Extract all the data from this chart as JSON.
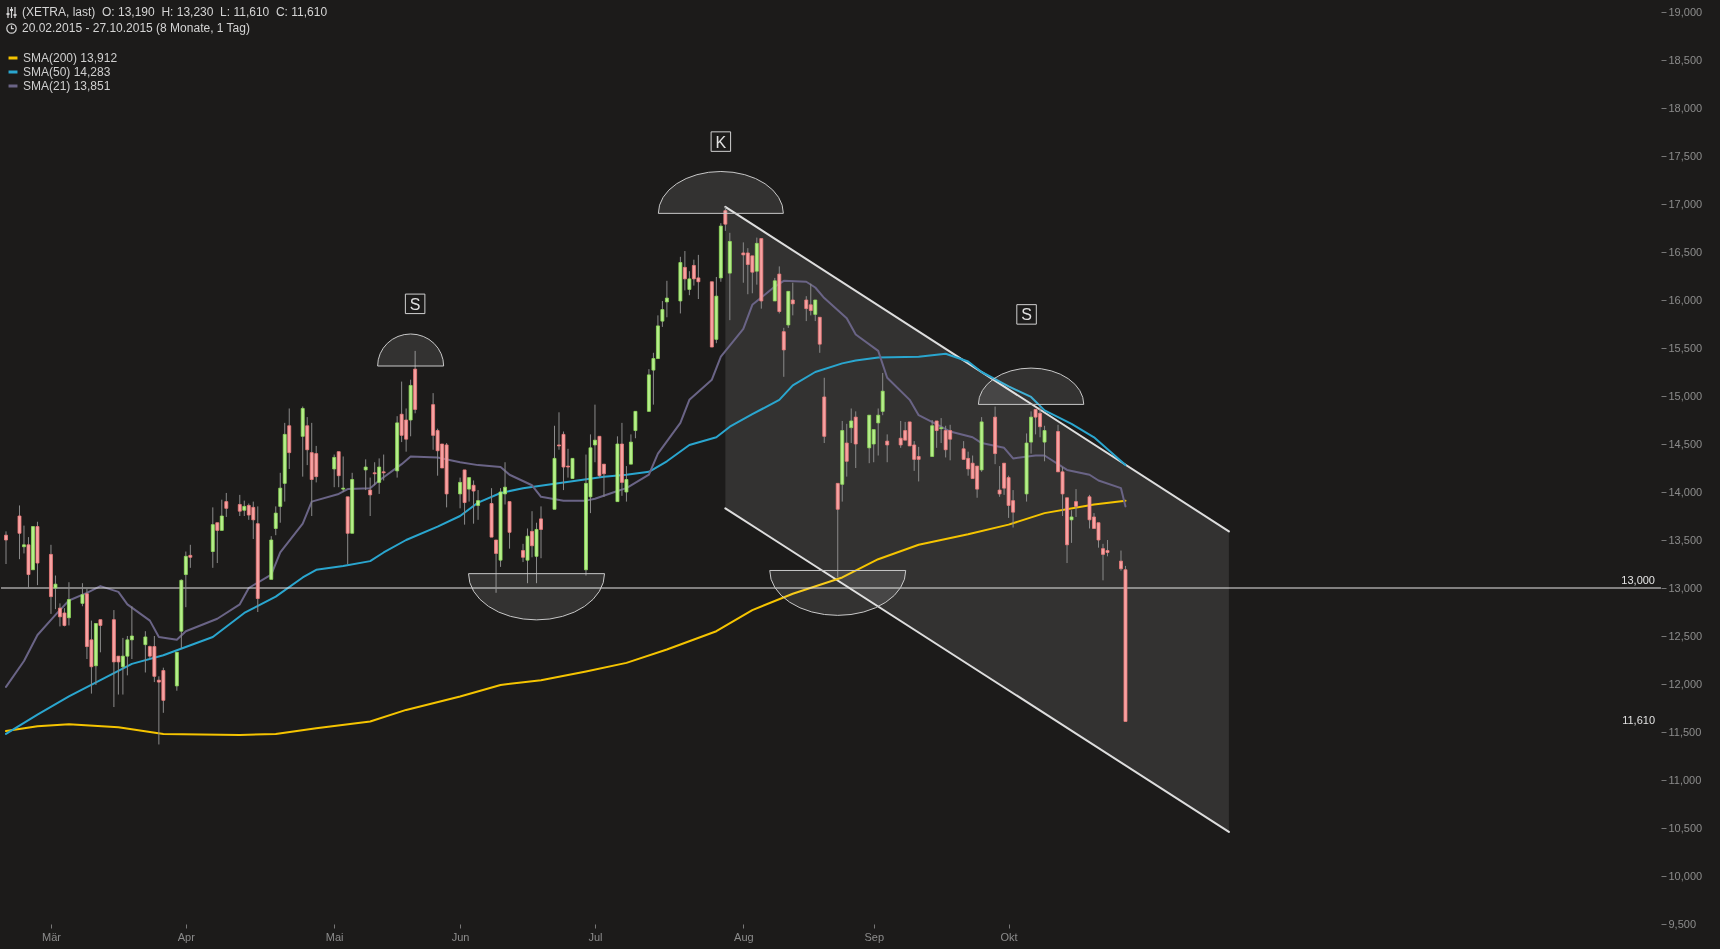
{
  "chart_data": {
    "type": "candlestick",
    "title": "(XETRA, last)  O: 13,190  H: 13,230  L: 11,610  C: 11,610",
    "subtitle": "20.02.2015 - 27.10.2015 (8 Monate, 1 Tag)",
    "x": [
      "2015-02-20",
      "2015-02-23",
      "2015-02-24",
      "2015-02-25",
      "2015-02-26",
      "2015-02-27",
      "2015-03-02",
      "2015-03-03",
      "2015-03-04",
      "2015-03-05",
      "2015-03-06",
      "2015-03-09",
      "2015-03-10",
      "2015-03-11",
      "2015-03-12",
      "2015-03-13",
      "2015-03-16",
      "2015-03-17",
      "2015-03-18",
      "2015-03-19",
      "2015-03-20",
      "2015-03-23",
      "2015-03-24",
      "2015-03-25",
      "2015-03-26",
      "2015-03-27",
      "2015-03-30",
      "2015-03-31",
      "2015-04-01",
      "2015-04-02",
      "2015-04-07",
      "2015-04-08",
      "2015-04-09",
      "2015-04-10",
      "2015-04-13",
      "2015-04-14",
      "2015-04-15",
      "2015-04-16",
      "2015-04-17",
      "2015-04-20",
      "2015-04-21",
      "2015-04-22",
      "2015-04-23",
      "2015-04-24",
      "2015-04-27",
      "2015-04-28",
      "2015-04-29",
      "2015-04-30",
      "2015-05-04",
      "2015-05-05",
      "2015-05-06",
      "2015-05-07",
      "2015-05-08",
      "2015-05-11",
      "2015-05-12",
      "2015-05-13",
      "2015-05-14",
      "2015-05-15",
      "2015-05-18",
      "2015-05-19",
      "2015-05-20",
      "2015-05-21",
      "2015-05-22",
      "2015-05-26",
      "2015-05-27",
      "2015-05-28",
      "2015-05-29",
      "2015-06-01",
      "2015-06-02",
      "2015-06-03",
      "2015-06-04",
      "2015-06-05",
      "2015-06-08",
      "2015-06-09",
      "2015-06-10",
      "2015-06-11",
      "2015-06-12",
      "2015-06-15",
      "2015-06-16",
      "2015-06-17",
      "2015-06-18",
      "2015-06-19",
      "2015-06-22",
      "2015-06-23",
      "2015-06-24",
      "2015-06-25",
      "2015-06-26",
      "2015-06-29",
      "2015-06-30",
      "2015-07-01",
      "2015-07-02",
      "2015-07-03",
      "2015-07-06",
      "2015-07-07",
      "2015-07-08",
      "2015-07-09",
      "2015-07-10",
      "2015-07-13",
      "2015-07-14",
      "2015-07-15",
      "2015-07-16",
      "2015-07-17",
      "2015-07-20",
      "2015-07-21",
      "2015-07-22",
      "2015-07-23",
      "2015-07-24",
      "2015-07-27",
      "2015-07-28",
      "2015-07-29",
      "2015-07-30",
      "2015-07-31",
      "2015-08-03",
      "2015-08-04",
      "2015-08-05",
      "2015-08-06",
      "2015-08-07",
      "2015-08-10",
      "2015-08-11",
      "2015-08-12",
      "2015-08-13",
      "2015-08-14",
      "2015-08-17",
      "2015-08-18",
      "2015-08-19",
      "2015-08-20",
      "2015-08-21",
      "2015-08-24",
      "2015-08-25",
      "2015-08-26",
      "2015-08-27",
      "2015-08-28",
      "2015-08-31",
      "2015-09-01",
      "2015-09-02",
      "2015-09-03",
      "2015-09-04",
      "2015-09-07",
      "2015-09-08",
      "2015-09-09",
      "2015-09-10",
      "2015-09-11",
      "2015-09-14",
      "2015-09-15",
      "2015-09-16",
      "2015-09-17",
      "2015-09-18",
      "2015-09-21",
      "2015-09-22",
      "2015-09-23",
      "2015-09-24",
      "2015-09-25",
      "2015-09-28",
      "2015-09-29",
      "2015-09-30",
      "2015-10-01",
      "2015-10-02",
      "2015-10-05",
      "2015-10-06",
      "2015-10-07",
      "2015-10-08",
      "2015-10-09",
      "2015-10-12",
      "2015-10-13",
      "2015-10-14",
      "2015-10-15",
      "2015-10-16",
      "2015-10-19",
      "2015-10-20",
      "2015-10-21",
      "2015-10-22",
      "2015-10-23",
      "2015-10-26",
      "2015-10-27"
    ],
    "ohlc": [
      [
        13550,
        13590,
        13250,
        13500
      ],
      [
        13750,
        13860,
        13300,
        13570
      ],
      [
        13430,
        13650,
        13360,
        13450
      ],
      [
        13450,
        13530,
        13000,
        13140
      ],
      [
        13190,
        13640,
        13190,
        13640
      ],
      [
        13640,
        13690,
        13030,
        13260
      ],
      [
        13350,
        13450,
        12730,
        12910
      ],
      [
        13000,
        13130,
        12780,
        13040
      ],
      [
        12790,
        12840,
        12600,
        12700
      ],
      [
        12740,
        12790,
        12600,
        12610
      ],
      [
        12690,
        13060,
        12610,
        12880
      ],
      [
        12840,
        13050,
        12810,
        12930
      ],
      [
        12940,
        12990,
        12260,
        12390
      ],
      [
        12460,
        12660,
        11900,
        12180
      ],
      [
        12190,
        12630,
        11990,
        12630
      ],
      [
        12670,
        12670,
        12330,
        12610
      ],
      [
        12670,
        12770,
        11760,
        12230
      ],
      [
        12290,
        12290,
        11890,
        12230
      ],
      [
        12180,
        12480,
        11890,
        12290
      ],
      [
        12290,
        12500,
        12090,
        12460
      ],
      [
        12460,
        12810,
        12260,
        12500
      ],
      [
        12410,
        12550,
        12120,
        12490
      ],
      [
        12390,
        12400,
        12260,
        12290
      ],
      [
        12390,
        12500,
        12020,
        12080
      ],
      [
        12040,
        12080,
        11370,
        12020
      ],
      [
        12140,
        12170,
        11700,
        11830
      ],
      [
        11980,
        12330,
        11930,
        12330
      ],
      [
        12550,
        13090,
        12370,
        13080
      ],
      [
        13140,
        13380,
        12800,
        13330
      ],
      [
        13340,
        13450,
        13210,
        13320
      ],
      [
        13380,
        13840,
        13210,
        13660
      ],
      [
        13680,
        13680,
        13260,
        13600
      ],
      [
        13600,
        13920,
        13600,
        13750
      ],
      [
        13900,
        13990,
        13740,
        13830
      ],
      [
        13870,
        13970,
        13750,
        13800
      ],
      [
        13810,
        13910,
        13750,
        13850
      ],
      [
        13860,
        13880,
        13710,
        13760
      ],
      [
        13840,
        13900,
        13510,
        13710
      ],
      [
        13670,
        13850,
        12750,
        12890
      ],
      [
        13090,
        13540,
        13090,
        13500
      ],
      [
        13620,
        13850,
        13550,
        13780
      ],
      [
        13850,
        14200,
        13680,
        14040
      ],
      [
        14090,
        14720,
        13900,
        14600
      ],
      [
        14690,
        14870,
        14240,
        14410
      ],
      [
        14580,
        14890,
        14160,
        14870
      ],
      [
        14690,
        14780,
        14280,
        14440
      ],
      [
        14410,
        14720,
        13750,
        14130
      ],
      [
        14400,
        14480,
        14100,
        14160
      ],
      [
        14240,
        14390,
        14050,
        14360
      ],
      [
        14420,
        14420,
        14050,
        14170
      ],
      [
        14030,
        14370,
        14000,
        14040
      ],
      [
        13950,
        13950,
        13250,
        13570
      ],
      [
        13570,
        14200,
        13570,
        14130
      ],
      [
        14230,
        14340,
        14020,
        14260
      ],
      [
        14020,
        14150,
        13750,
        13970
      ],
      [
        14200,
        14310,
        14070,
        14190
      ],
      [
        14100,
        14350,
        13980,
        14260
      ],
      [
        14210,
        14390,
        14120,
        14200
      ],
      [
        14220,
        14790,
        14150,
        14720
      ],
      [
        14810,
        15150,
        14520,
        14590
      ],
      [
        14750,
        14870,
        14420,
        14550
      ],
      [
        14750,
        15170,
        14580,
        15110
      ],
      [
        15280,
        15470,
        14820,
        14860
      ],
      [
        14910,
        15030,
        14440,
        14590
      ],
      [
        14640,
        14660,
        14170,
        14430
      ],
      [
        14500,
        14500,
        14250,
        14250
      ],
      [
        14490,
        14510,
        13840,
        13980
      ],
      [
        13980,
        14150,
        13830,
        14100
      ],
      [
        14230,
        14230,
        13660,
        13890
      ],
      [
        14030,
        14150,
        13900,
        14150
      ],
      [
        14070,
        14120,
        13670,
        14010
      ],
      [
        13860,
        14020,
        13710,
        13910
      ],
      [
        13880,
        14040,
        13530,
        13530
      ],
      [
        13500,
        13500,
        12950,
        13360
      ],
      [
        13290,
        14040,
        13220,
        14000
      ],
      [
        13980,
        14310,
        13870,
        14050
      ],
      [
        13900,
        13900,
        13410,
        13580
      ],
      [
        13390,
        13460,
        13270,
        13320
      ],
      [
        13290,
        13620,
        13050,
        13540
      ],
      [
        13590,
        13800,
        13320,
        13440
      ],
      [
        13330,
        13680,
        13050,
        13610
      ],
      [
        13720,
        13850,
        13310,
        13610
      ],
      [
        13820,
        14690,
        13820,
        14350
      ],
      [
        14490,
        14830,
        14440,
        14480
      ],
      [
        14600,
        14630,
        14020,
        14260
      ],
      [
        14270,
        14450,
        14150,
        14260
      ],
      [
        14140,
        14350,
        14140,
        14350
      ],
      [
        13190,
        14390,
        13130,
        14090
      ],
      [
        13950,
        14600,
        13780,
        14460
      ],
      [
        14490,
        14910,
        14310,
        14540
      ],
      [
        14580,
        14580,
        14150,
        14170
      ],
      [
        14290,
        14290,
        13950,
        14190
      ],
      [
        13900,
        14580,
        13900,
        14500
      ],
      [
        14500,
        14720,
        13960,
        14100
      ],
      [
        14000,
        14270,
        13900,
        14130
      ],
      [
        14290,
        14600,
        14290,
        14520
      ],
      [
        14640,
        14840,
        14560,
        14840
      ],
      [
        14840,
        15280,
        14840,
        15220
      ],
      [
        15270,
        15450,
        14910,
        15390
      ],
      [
        15390,
        15840,
        15390,
        15730
      ],
      [
        15780,
        15990,
        15720,
        15900
      ],
      [
        15980,
        16200,
        15820,
        16020
      ],
      [
        15990,
        16450,
        15860,
        16390
      ],
      [
        16340,
        16510,
        16100,
        16220
      ],
      [
        16110,
        16300,
        16050,
        16220
      ],
      [
        16360,
        16420,
        16150,
        16220
      ],
      [
        16230,
        16470,
        16010,
        16190
      ],
      [
        16190,
        16190,
        15510,
        15510
      ],
      [
        15590,
        16240,
        15550,
        16040
      ],
      [
        16230,
        16800,
        16190,
        16770
      ],
      [
        16930,
        16970,
        16720,
        16790
      ],
      [
        16280,
        16700,
        15790,
        16610
      ],
      [
        16490,
        16600,
        16180,
        16470
      ],
      [
        16490,
        16540,
        16060,
        16370
      ],
      [
        16460,
        16460,
        16070,
        16290
      ],
      [
        16300,
        16650,
        16160,
        16590
      ],
      [
        16640,
        16640,
        15910,
        15990
      ],
      [
        15990,
        16230,
        15990,
        16200
      ],
      [
        16270,
        16350,
        15860,
        15880
      ],
      [
        15670,
        15710,
        15200,
        15480
      ],
      [
        15740,
        16090,
        15710,
        16090
      ],
      [
        16000,
        16180,
        15840,
        15960
      ],
      [
        16000,
        16040,
        15780,
        15910
      ],
      [
        15950,
        16170,
        15840,
        15890
      ],
      [
        15850,
        16000,
        15780,
        16000
      ],
      [
        15820,
        15820,
        15450,
        15540
      ],
      [
        14990,
        15190,
        14510,
        14580
      ],
      [
        14090,
        14090,
        13110,
        13820
      ],
      [
        14080,
        14740,
        13900,
        14640
      ],
      [
        14510,
        14710,
        14160,
        14320
      ],
      [
        14670,
        14870,
        14510,
        14740
      ],
      [
        14780,
        14840,
        14250,
        14500
      ],
      [
        14460,
        14800,
        14300,
        14800
      ],
      [
        14500,
        14650,
        14310,
        14650
      ],
      [
        14720,
        14870,
        14380,
        14800
      ],
      [
        14840,
        15240,
        14800,
        15050
      ],
      [
        14530,
        14600,
        14310,
        14490
      ],
      [
        14560,
        14740,
        14460,
        14490
      ],
      [
        14640,
        14730,
        14540,
        14540
      ],
      [
        14730,
        14730,
        14480,
        14480
      ],
      [
        14490,
        14530,
        14220,
        14340
      ],
      [
        14370,
        14470,
        14110,
        14340
      ],
      [
        14370,
        14750,
        14370,
        14690
      ],
      [
        14740,
        14740,
        14460,
        14640
      ],
      [
        14660,
        14770,
        14510,
        14670
      ],
      [
        14640,
        14690,
        14360,
        14440
      ],
      [
        14640,
        14700,
        14330,
        14550
      ],
      [
        14450,
        14530,
        14340,
        14340
      ],
      [
        14350,
        14420,
        14170,
        14240
      ],
      [
        14300,
        14380,
        14140,
        14140
      ],
      [
        14270,
        14270,
        13940,
        14030
      ],
      [
        14230,
        14780,
        14210,
        14730
      ],
      [
        14780,
        14890,
        14290,
        14400
      ],
      [
        14020,
        14270,
        13950,
        13980
      ],
      [
        14300,
        14300,
        13970,
        14040
      ],
      [
        14150,
        14170,
        13730,
        13860
      ],
      [
        13910,
        14020,
        13630,
        13790
      ],
      [
        13980,
        14610,
        13900,
        14510
      ],
      [
        14520,
        14840,
        14400,
        14780
      ],
      [
        14860,
        14860,
        14600,
        14780
      ],
      [
        14820,
        14890,
        14570,
        14680
      ],
      [
        14520,
        14690,
        14320,
        14640
      ],
      [
        14630,
        14700,
        14210,
        14210
      ],
      [
        14210,
        14260,
        13750,
        13980
      ],
      [
        13940,
        13940,
        13260,
        13450
      ],
      [
        13710,
        13810,
        13470,
        13740
      ],
      [
        13900,
        14030,
        13740,
        13850
      ],
      [
        13950,
        13970,
        13620,
        13710
      ],
      [
        13740,
        13780,
        13620,
        13620
      ],
      [
        13680,
        13680,
        13420,
        13500
      ],
      [
        13410,
        13460,
        13080,
        13350
      ],
      [
        13390,
        13500,
        13330,
        13370
      ],
      [
        13280,
        13390,
        13180,
        13200
      ],
      [
        13190,
        13230,
        11610,
        11610
      ]
    ],
    "series": [
      {
        "type": "line",
        "color": "#dddddd",
        "x": [
          "2015-07-30",
          "2015-11-19"
        ],
        "values": [
          16970,
          13590
        ]
      },
      {
        "type": "line",
        "color": "#dddddd",
        "x": [
          "2015-07-30",
          "2015-11-19"
        ],
        "values": [
          13830,
          10460
        ]
      },
      {
        "type": "line",
        "name": "SMA(200)  13,912",
        "color": "#f5c400",
        "x": [
          "2015-02-20",
          "2015-02-27",
          "2015-03-06",
          "2015-03-17",
          "2015-03-27",
          "2015-04-13",
          "2015-04-21",
          "2015-04-30",
          "2015-05-12",
          "2015-05-20",
          "2015-06-01",
          "2015-06-10",
          "2015-06-19",
          "2015-06-29",
          "2015-07-08",
          "2015-07-17",
          "2015-07-28",
          "2015-08-05",
          "2015-08-14",
          "2015-08-25",
          "2015-09-02",
          "2015-09-11",
          "2015-09-22",
          "2015-10-01",
          "2015-10-09",
          "2015-10-20",
          "2015-10-27"
        ],
        "values": [
          11510,
          11560,
          11580,
          11550,
          11480,
          11470,
          11480,
          11540,
          11610,
          11730,
          11870,
          11990,
          12040,
          12130,
          12220,
          12360,
          12550,
          12770,
          12940,
          13110,
          13300,
          13450,
          13560,
          13660,
          13780,
          13870,
          13910
        ]
      },
      {
        "type": "line",
        "name": "SMA(50)  14,283",
        "color": "#2aa6cf",
        "x": [
          "2015-02-20",
          "2015-02-27",
          "2015-03-06",
          "2015-03-13",
          "2015-03-20",
          "2015-03-27",
          "2015-04-07",
          "2015-04-14",
          "2015-04-21",
          "2015-04-27",
          "2015-04-30",
          "2015-05-06",
          "2015-05-12",
          "2015-05-15",
          "2015-05-20",
          "2015-05-27",
          "2015-06-01",
          "2015-06-05",
          "2015-06-10",
          "2015-06-15",
          "2015-06-24",
          "2015-07-03",
          "2015-07-08",
          "2015-07-13",
          "2015-07-17",
          "2015-07-22",
          "2015-07-28",
          "2015-07-31",
          "2015-08-05",
          "2015-08-11",
          "2015-08-14",
          "2015-08-19",
          "2015-08-25",
          "2015-08-28",
          "2015-09-02",
          "2015-09-11",
          "2015-09-17",
          "2015-09-22",
          "2015-09-25",
          "2015-10-01",
          "2015-10-06",
          "2015-10-09",
          "2015-10-15",
          "2015-10-20",
          "2015-10-27"
        ],
        "values": [
          11480,
          11680,
          11870,
          12040,
          12210,
          12300,
          12490,
          12740,
          12910,
          13110,
          13190,
          13230,
          13280,
          13370,
          13500,
          13640,
          13750,
          13890,
          13990,
          14040,
          14100,
          14160,
          14180,
          14210,
          14320,
          14490,
          14570,
          14680,
          14810,
          14960,
          15110,
          15250,
          15340,
          15370,
          15400,
          15410,
          15440,
          15360,
          15250,
          15100,
          14990,
          14850,
          14710,
          14570,
          14280
        ]
      },
      {
        "type": "line",
        "name": "SMA(21)  13,851",
        "color": "#6a6486",
        "x": [
          "2015-02-20",
          "2015-02-24",
          "2015-02-27",
          "2015-03-03",
          "2015-03-06",
          "2015-03-10",
          "2015-03-13",
          "2015-03-17",
          "2015-03-19",
          "2015-03-24",
          "2015-03-26",
          "2015-03-30",
          "2015-04-01",
          "2015-04-08",
          "2015-04-13",
          "2015-04-15",
          "2015-04-20",
          "2015-04-22",
          "2015-04-27",
          "2015-04-29",
          "2015-05-05",
          "2015-05-07",
          "2015-05-12",
          "2015-05-14",
          "2015-05-19",
          "2015-05-21",
          "2015-05-27",
          "2015-06-01",
          "2015-06-05",
          "2015-06-10",
          "2015-06-12",
          "2015-06-17",
          "2015-06-19",
          "2015-06-24",
          "2015-06-29",
          "2015-07-01",
          "2015-07-06",
          "2015-07-08",
          "2015-07-13",
          "2015-07-15",
          "2015-07-20",
          "2015-07-22",
          "2015-07-27",
          "2015-07-29",
          "2015-08-03",
          "2015-08-05",
          "2015-08-10",
          "2015-08-12",
          "2015-08-17",
          "2015-08-19",
          "2015-08-21",
          "2015-08-26",
          "2015-08-28",
          "2015-09-02",
          "2015-09-04",
          "2015-09-09",
          "2015-09-11",
          "2015-09-16",
          "2015-09-18",
          "2015-09-23",
          "2015-09-25",
          "2015-09-30",
          "2015-10-02",
          "2015-10-07",
          "2015-10-09",
          "2015-10-14",
          "2015-10-19",
          "2015-10-21",
          "2015-10-26",
          "2015-10-27"
        ],
        "values": [
          11970,
          12240,
          12510,
          12720,
          12870,
          12950,
          13020,
          12960,
          12830,
          12660,
          12490,
          12460,
          12550,
          12680,
          12830,
          13000,
          13140,
          13370,
          13670,
          13900,
          13980,
          14030,
          14040,
          14120,
          14290,
          14370,
          14360,
          14310,
          14280,
          14260,
          14180,
          14070,
          13950,
          13910,
          13910,
          13930,
          14010,
          14040,
          14180,
          14400,
          14720,
          14960,
          15170,
          15410,
          15700,
          15950,
          16140,
          16200,
          16190,
          16130,
          16020,
          15810,
          15640,
          15470,
          15190,
          14960,
          14800,
          14680,
          14630,
          14570,
          14510,
          14460,
          14350,
          14380,
          14380,
          14230,
          14180,
          14120,
          14040,
          13850
        ]
      }
    ],
    "xlim": [
      "2015-02-20",
      "2016-02-22"
    ],
    "ylim": [
      9500,
      19000
    ],
    "xticks": [
      {
        "value": "2015-03-02",
        "label": "Mär"
      },
      {
        "value": "2015-04-01",
        "label": "Apr"
      },
      {
        "value": "2015-05-04",
        "label": "Mai"
      },
      {
        "value": "2015-06-01",
        "label": "Jun"
      },
      {
        "value": "2015-07-01",
        "label": "Jul"
      },
      {
        "value": "2015-08-03",
        "label": "Aug"
      },
      {
        "value": "2015-09-01",
        "label": "Sep"
      },
      {
        "value": "2015-10-01",
        "label": "Okt"
      }
    ],
    "yticks": [
      {
        "value": 9500,
        "label": "9,500"
      },
      {
        "value": 10000,
        "label": "10,000"
      },
      {
        "value": 10500,
        "label": "10,500"
      },
      {
        "value": 11000,
        "label": "11,000"
      },
      {
        "value": 11500,
        "label": "11,500"
      },
      {
        "value": 12000,
        "label": "12,000"
      },
      {
        "value": 12500,
        "label": "12,500"
      },
      {
        "value": 13000,
        "label": "13,000"
      },
      {
        "value": 13500,
        "label": "13,500"
      },
      {
        "value": 14000,
        "label": "14,000"
      },
      {
        "value": 14500,
        "label": "14,500"
      },
      {
        "value": 15000,
        "label": "15,000"
      },
      {
        "value": 15500,
        "label": "15,500"
      },
      {
        "value": 16000,
        "label": "16,000"
      },
      {
        "value": 16500,
        "label": "16,500"
      },
      {
        "value": 17000,
        "label": "17,000"
      },
      {
        "value": 17500,
        "label": "17,500"
      },
      {
        "value": 18000,
        "label": "18,000"
      },
      {
        "value": 18500,
        "label": "18,500"
      },
      {
        "value": 19000,
        "label": "19,000"
      }
    ],
    "ref_lines": [
      {
        "axis": "y",
        "value": 13000,
        "label": "13,000",
        "color": "#e6e6e6"
      }
    ],
    "annotations": [
      {
        "text": "S",
        "x": "2015-05-22",
        "y": 15960
      },
      {
        "text": "K",
        "x": "2015-07-29",
        "y": 17650
      },
      {
        "text": "S",
        "x": "2015-10-05",
        "y": 15850
      },
      "11,610"
    ],
    "legend": "top left",
    "grid": false
  }
}
